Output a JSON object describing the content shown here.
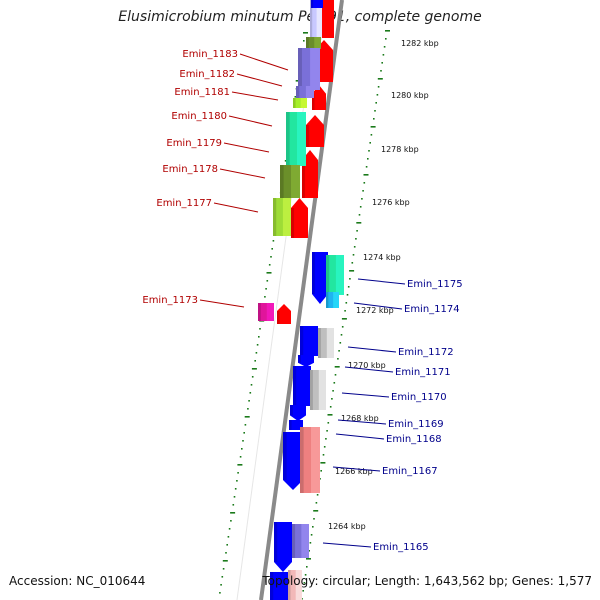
{
  "title": "Elusimicrobium minutum Pei191, complete genome",
  "accession": "Accession: NC_010644",
  "topology": "Topology: circular; Length: 1,643,562 bp; Genes: 1,577",
  "colors": {
    "forward": "#ff0000",
    "reverse": "#0000ff",
    "left_label": "#b00000",
    "right_label": "#00008b",
    "ruler": "#1a7a1a"
  },
  "ticks": [
    "1282 kbp",
    "1280 kbp",
    "1278 kbp",
    "1276 kbp",
    "1274 kbp",
    "1272 kbp",
    "1270 kbp",
    "1268 kbp",
    "1266 kbp",
    "1264 kbp"
  ],
  "left_labels": [
    "Emin_1183",
    "Emin_1182",
    "Emin_1181",
    "Emin_1180",
    "Emin_1179",
    "Emin_1178",
    "Emin_1177",
    "Emin_1173"
  ],
  "right_labels": [
    "Emin_1175",
    "Emin_1174",
    "Emin_1172",
    "Emin_1171",
    "Emin_1170",
    "Emin_1169",
    "Emin_1168",
    "Emin_1167",
    "Emin_1165"
  ]
}
